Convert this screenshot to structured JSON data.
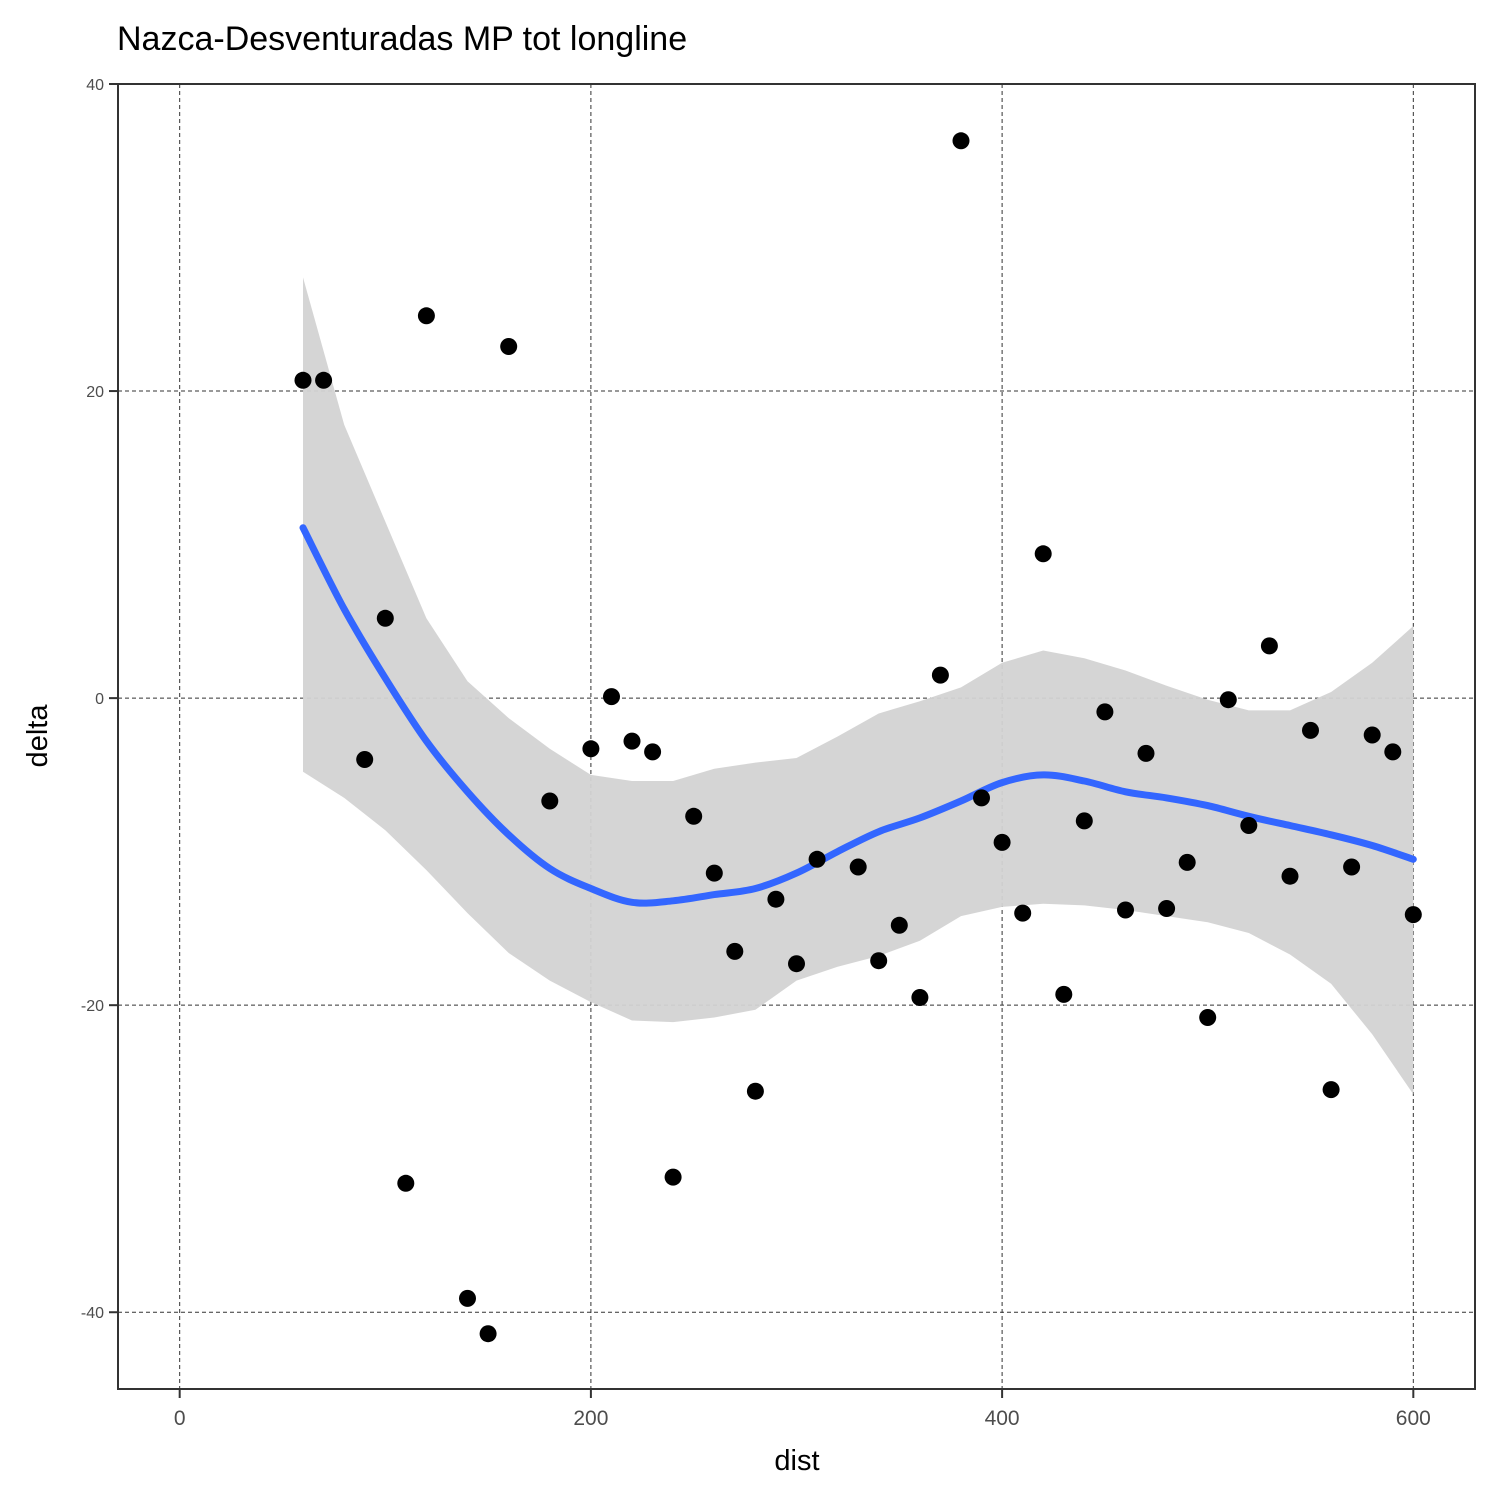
{
  "chart_data": {
    "type": "scatter",
    "title": "Nazca-Desventuradas MP tot longline",
    "xlabel": "dist",
    "ylabel": "delta",
    "xlim": [
      -30,
      630
    ],
    "ylim": [
      -45,
      40
    ],
    "x_ticks": [
      0,
      200,
      400,
      600
    ],
    "y_ticks": [
      -40,
      -20,
      0,
      20,
      40
    ],
    "x_tick_labels": [
      "0",
      "200",
      "400",
      "600"
    ],
    "y_tick_labels": [
      "-40",
      "-20",
      "0",
      "20",
      "40"
    ],
    "grid": true,
    "colors": {
      "points": "#000000",
      "smooth_line": "#3366FF",
      "confidence_band": "#d3d3d3",
      "grid": "#333333",
      "panel_border": "#333333"
    },
    "points": [
      {
        "x": 60,
        "y": 20.7
      },
      {
        "x": 70,
        "y": 20.7
      },
      {
        "x": 90,
        "y": -4.0
      },
      {
        "x": 100,
        "y": 5.2
      },
      {
        "x": 110,
        "y": -31.6
      },
      {
        "x": 120,
        "y": 24.9
      },
      {
        "x": 140,
        "y": -39.1
      },
      {
        "x": 150,
        "y": -41.4
      },
      {
        "x": 160,
        "y": 22.9
      },
      {
        "x": 180,
        "y": -6.7
      },
      {
        "x": 200,
        "y": -3.3
      },
      {
        "x": 210,
        "y": 0.1
      },
      {
        "x": 220,
        "y": -2.8
      },
      {
        "x": 230,
        "y": -3.5
      },
      {
        "x": 240,
        "y": -31.2
      },
      {
        "x": 250,
        "y": -7.7
      },
      {
        "x": 260,
        "y": -11.4
      },
      {
        "x": 270,
        "y": -16.5
      },
      {
        "x": 280,
        "y": -25.6
      },
      {
        "x": 290,
        "y": -13.1
      },
      {
        "x": 300,
        "y": -17.3
      },
      {
        "x": 310,
        "y": -10.5
      },
      {
        "x": 330,
        "y": -11.0
      },
      {
        "x": 340,
        "y": -17.1
      },
      {
        "x": 350,
        "y": -14.8
      },
      {
        "x": 360,
        "y": -19.5
      },
      {
        "x": 370,
        "y": 1.5
      },
      {
        "x": 380,
        "y": 36.3
      },
      {
        "x": 390,
        "y": -6.5
      },
      {
        "x": 400,
        "y": -9.4
      },
      {
        "x": 410,
        "y": -14.0
      },
      {
        "x": 420,
        "y": 9.4
      },
      {
        "x": 430,
        "y": -19.3
      },
      {
        "x": 440,
        "y": -8.0
      },
      {
        "x": 450,
        "y": -0.9
      },
      {
        "x": 460,
        "y": -13.8
      },
      {
        "x": 470,
        "y": -3.6
      },
      {
        "x": 480,
        "y": -13.7
      },
      {
        "x": 490,
        "y": -10.7
      },
      {
        "x": 500,
        "y": -20.8
      },
      {
        "x": 510,
        "y": -0.1
      },
      {
        "x": 520,
        "y": -8.3
      },
      {
        "x": 530,
        "y": 3.4
      },
      {
        "x": 540,
        "y": -11.6
      },
      {
        "x": 550,
        "y": -2.1
      },
      {
        "x": 560,
        "y": -25.5
      },
      {
        "x": 570,
        "y": -11.0
      },
      {
        "x": 580,
        "y": -2.4
      },
      {
        "x": 590,
        "y": -3.5
      },
      {
        "x": 600,
        "y": -14.1
      }
    ],
    "smooth": {
      "x": [
        60,
        80,
        100,
        120,
        140,
        160,
        180,
        200,
        220,
        240,
        260,
        280,
        300,
        320,
        340,
        360,
        380,
        400,
        420,
        440,
        460,
        480,
        500,
        520,
        540,
        560,
        580,
        600
      ],
      "y": [
        11.1,
        5.8,
        1.3,
        -2.8,
        -6.1,
        -8.9,
        -11.1,
        -12.4,
        -13.3,
        -13.2,
        -12.8,
        -12.4,
        -11.4,
        -10.0,
        -8.7,
        -7.8,
        -6.7,
        -5.5,
        -5.0,
        -5.4,
        -6.1,
        -6.5,
        -7.0,
        -7.7,
        -8.3,
        -8.9,
        -9.6,
        -10.5
      ],
      "lower": [
        -4.8,
        -6.5,
        -8.6,
        -11.2,
        -14.0,
        -16.6,
        -18.4,
        -19.8,
        -21.0,
        -21.1,
        -20.8,
        -20.3,
        -18.4,
        -17.5,
        -16.8,
        -15.8,
        -14.2,
        -13.6,
        -13.4,
        -13.5,
        -13.8,
        -14.2,
        -14.6,
        -15.3,
        -16.7,
        -18.6,
        -21.9,
        -25.8
      ],
      "upper": [
        27.4,
        17.8,
        11.5,
        5.2,
        1.1,
        -1.3,
        -3.3,
        -5.0,
        -5.4,
        -5.4,
        -4.6,
        -4.2,
        -3.9,
        -2.5,
        -1.0,
        -0.2,
        0.7,
        2.3,
        3.1,
        2.6,
        1.8,
        0.8,
        -0.1,
        -0.8,
        -0.8,
        0.4,
        2.3,
        4.7
      ]
    }
  }
}
